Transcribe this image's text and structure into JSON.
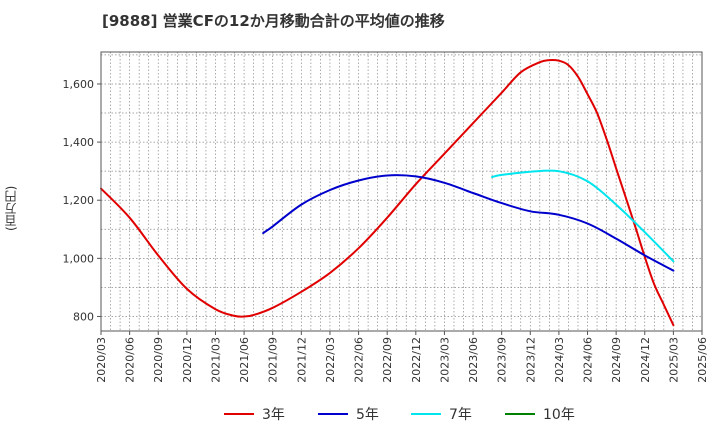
{
  "chart_data": {
    "type": "line",
    "title": "[9888]  営業CFの12か月移動合計の平均値の推移",
    "ylabel": "(百万円)",
    "xlabel": "",
    "ylim": [
      750,
      1710
    ],
    "y_ticks": [
      800,
      1000,
      1200,
      1400,
      1600
    ],
    "y_tick_labels": [
      "800",
      "1,000",
      "1,200",
      "1,400",
      "1,600"
    ],
    "x_ticks": [
      "2020/03",
      "2020/06",
      "2020/09",
      "2020/12",
      "2021/03",
      "2021/06",
      "2021/09",
      "2021/12",
      "2022/03",
      "2022/06",
      "2022/09",
      "2022/12",
      "2023/03",
      "2023/06",
      "2023/09",
      "2023/12",
      "2024/03",
      "2024/06",
      "2024/09",
      "2024/12",
      "2025/03",
      "2025/06"
    ],
    "grid": true,
    "legend_position": "bottom",
    "series": [
      {
        "name": "3年",
        "color": "#e00000",
        "x": [
          "2020/03",
          "2020/06",
          "2020/09",
          "2020/12",
          "2021/03",
          "2021/05",
          "2021/06",
          "2021/07",
          "2021/09",
          "2021/12",
          "2022/03",
          "2022/06",
          "2022/09",
          "2022/12",
          "2023/03",
          "2023/06",
          "2023/09",
          "2023/11",
          "2024/01",
          "2024/02",
          "2024/03",
          "2024/04",
          "2024/05",
          "2024/06",
          "2024/07",
          "2024/08",
          "2024/09",
          "2024/10",
          "2024/11",
          "2024/12",
          "2025/01",
          "2025/02",
          "2025/03"
        ],
        "values": [
          1240,
          1140,
          1010,
          895,
          825,
          802,
          800,
          805,
          830,
          885,
          950,
          1035,
          1140,
          1255,
          1360,
          1465,
          1570,
          1640,
          1675,
          1682,
          1680,
          1665,
          1625,
          1565,
          1500,
          1410,
          1310,
          1210,
          1110,
          1005,
          910,
          840,
          770
        ]
      },
      {
        "name": "5年",
        "color": "#0000cc",
        "x": [
          "2021/08",
          "2021/09",
          "2021/12",
          "2022/03",
          "2022/06",
          "2022/09",
          "2022/12",
          "2023/03",
          "2023/06",
          "2023/09",
          "2023/12",
          "2024/03",
          "2024/06",
          "2024/09",
          "2024/12",
          "2025/03"
        ],
        "values": [
          1087,
          1110,
          1185,
          1235,
          1268,
          1285,
          1282,
          1260,
          1225,
          1190,
          1162,
          1150,
          1120,
          1068,
          1010,
          958
        ]
      },
      {
        "name": "7年",
        "color": "#00e5ee",
        "x": [
          "2023/08",
          "2023/09",
          "2023/12",
          "2024/03",
          "2024/06",
          "2024/09",
          "2024/12",
          "2025/03"
        ],
        "values": [
          1280,
          1287,
          1298,
          1300,
          1265,
          1185,
          1090,
          990
        ]
      },
      {
        "name": "10年",
        "color": "#008000",
        "x": [],
        "values": []
      }
    ]
  }
}
